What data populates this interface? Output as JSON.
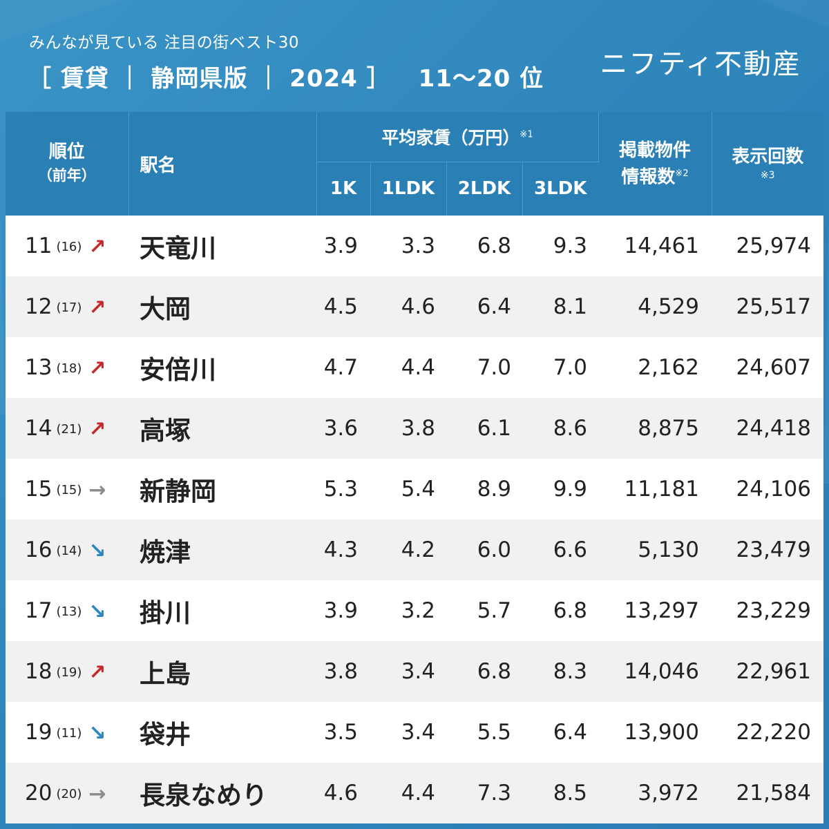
{
  "header": {
    "subtitle": "みんなが見ている 注目の街ベスト30",
    "title": "［ 賃貸 ｜ 静岡県版 ｜ 2024 ］",
    "range": "11〜20 位",
    "brand": "ニフティ不動産"
  },
  "columns": {
    "rank": "順位",
    "rank_prev": "（前年）",
    "station": "駅名",
    "rent_group": "平均家賃（万円）",
    "rent_note": "※1",
    "rent_1k": "1K",
    "rent_1ldk": "1LDK",
    "rent_2ldk": "2LDK",
    "rent_3ldk": "3LDK",
    "listings_line1": "掲載物件",
    "listings_line2": "情報数",
    "listings_note": "※2",
    "views": "表示回数",
    "views_note": "※3"
  },
  "rows": [
    {
      "rank": "11",
      "prev": "(16)",
      "trend": "↗",
      "station": "天竜川",
      "k1": "3.9",
      "ldk1": "3.3",
      "ldk2": "6.8",
      "ldk3": "9.3",
      "listings": "14,461",
      "views": "25,974"
    },
    {
      "rank": "12",
      "prev": "(17)",
      "trend": "↗",
      "station": "大岡",
      "k1": "4.5",
      "ldk1": "4.6",
      "ldk2": "6.4",
      "ldk3": "8.1",
      "listings": "4,529",
      "views": "25,517"
    },
    {
      "rank": "13",
      "prev": "(18)",
      "trend": "↗",
      "station": "安倍川",
      "k1": "4.7",
      "ldk1": "4.4",
      "ldk2": "7.0",
      "ldk3": "7.0",
      "listings": "2,162",
      "views": "24,607"
    },
    {
      "rank": "14",
      "prev": "(21)",
      "trend": "↗",
      "station": "高塚",
      "k1": "3.6",
      "ldk1": "3.8",
      "ldk2": "6.1",
      "ldk3": "8.6",
      "listings": "8,875",
      "views": "24,418"
    },
    {
      "rank": "15",
      "prev": "(15)",
      "trend": "→",
      "station": "新静岡",
      "k1": "5.3",
      "ldk1": "5.4",
      "ldk2": "8.9",
      "ldk3": "9.9",
      "listings": "11,181",
      "views": "24,106"
    },
    {
      "rank": "16",
      "prev": "(14)",
      "trend": "↘",
      "station": "焼津",
      "k1": "4.3",
      "ldk1": "4.2",
      "ldk2": "6.0",
      "ldk3": "6.6",
      "listings": "5,130",
      "views": "23,479"
    },
    {
      "rank": "17",
      "prev": "(13)",
      "trend": "↘",
      "station": "掛川",
      "k1": "3.9",
      "ldk1": "3.2",
      "ldk2": "5.7",
      "ldk3": "6.8",
      "listings": "13,297",
      "views": "23,229"
    },
    {
      "rank": "18",
      "prev": "(19)",
      "trend": "↗",
      "station": "上島",
      "k1": "3.8",
      "ldk1": "3.4",
      "ldk2": "6.8",
      "ldk3": "8.3",
      "listings": "14,046",
      "views": "22,961"
    },
    {
      "rank": "19",
      "prev": "(11)",
      "trend": "↘",
      "station": "袋井",
      "k1": "3.5",
      "ldk1": "3.4",
      "ldk2": "5.5",
      "ldk3": "6.4",
      "listings": "13,900",
      "views": "22,220"
    },
    {
      "rank": "20",
      "prev": "(20)",
      "trend": "→",
      "station": "長泉なめり",
      "k1": "4.6",
      "ldk1": "4.4",
      "ldk2": "7.3",
      "ldk3": "8.5",
      "listings": "3,972",
      "views": "21,584"
    }
  ],
  "colors": {
    "background": "#2f86bb",
    "header_row": "#2a7fb5",
    "up": "#c8282d",
    "down": "#2a87c0",
    "flat": "#8c8c8c"
  }
}
